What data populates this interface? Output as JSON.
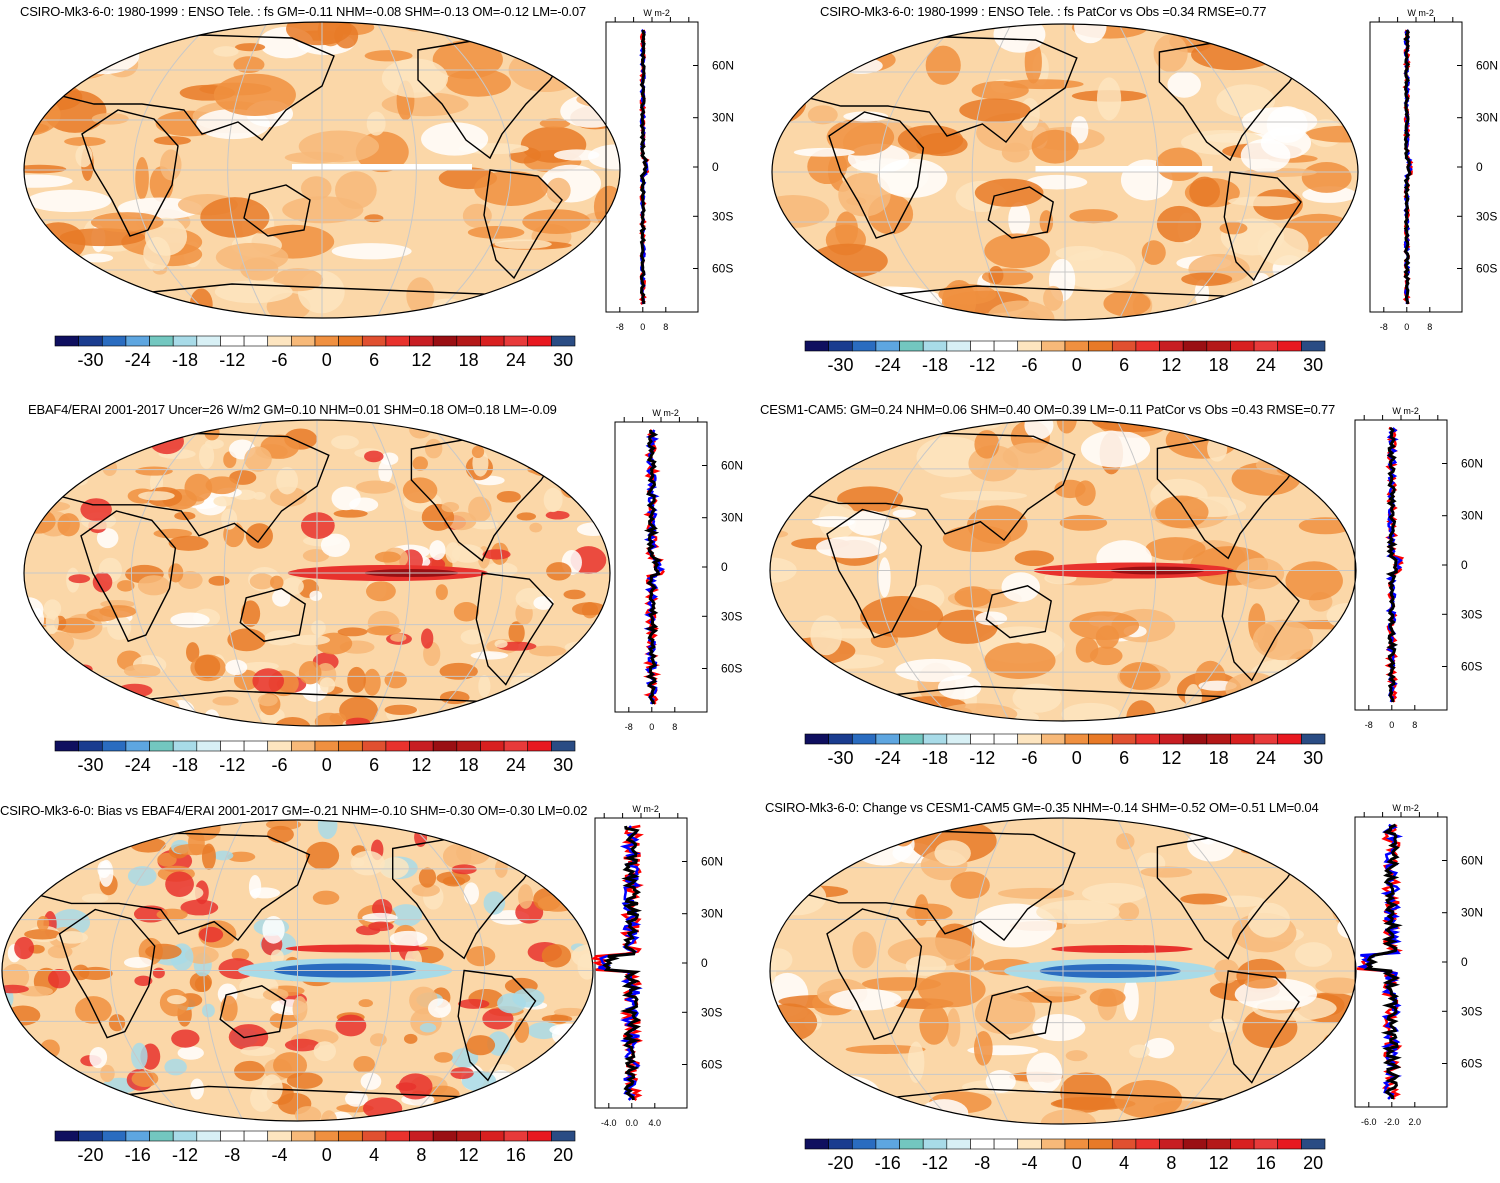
{
  "panels": [
    {
      "title": "CSIRO-Mk3-6-0: 1980-1999 : ENSO Tele. : fs GM=-0.11 NHM=-0.08 SHM=-0.13 OM=-0.12 LM=-0.07",
      "colorbar_labels": [
        "-30",
        "-24",
        "-18",
        "-12",
        "-6",
        "0",
        "6",
        "12",
        "18",
        "24",
        "30"
      ],
      "zonal": {
        "units": "W m-2",
        "lat_labels": [
          "60N",
          "30N",
          "0",
          "30S",
          "60S"
        ],
        "x_ticks": [
          "-8",
          "0",
          "8"
        ]
      }
    },
    {
      "title": "CSIRO-Mk3-6-0: 1980-1999 : ENSO Tele. : fs PatCor vs Obs =0.34 RMSE=0.77",
      "colorbar_labels": [
        "-30",
        "-24",
        "-18",
        "-12",
        "-6",
        "0",
        "6",
        "12",
        "18",
        "24",
        "30"
      ],
      "zonal": {
        "units": "W m-2",
        "lat_labels": [
          "60N",
          "30N",
          "0",
          "30S",
          "60S"
        ],
        "x_ticks": [
          "-8",
          "0",
          "8"
        ]
      }
    },
    {
      "title": "EBAF4/ERAI 2001-2017 Uncer=26 W/m2 GM=0.10 NHM=0.01 SHM=0.18 OM=0.18 LM=-0.09",
      "colorbar_labels": [
        "-30",
        "-24",
        "-18",
        "-12",
        "-6",
        "0",
        "6",
        "12",
        "18",
        "24",
        "30"
      ],
      "zonal": {
        "units": "W m-2",
        "lat_labels": [
          "60N",
          "30N",
          "0",
          "30S",
          "60S"
        ],
        "x_ticks": [
          "-8",
          "0",
          "8"
        ]
      }
    },
    {
      "title": "CESM1-CAM5: GM=0.24 NHM=0.06 SHM=0.40 OM=0.39 LM=-0.11 PatCor vs Obs =0.43 RMSE=0.77",
      "colorbar_labels": [
        "-30",
        "-24",
        "-18",
        "-12",
        "-6",
        "0",
        "6",
        "12",
        "18",
        "24",
        "30"
      ],
      "zonal": {
        "units": "W m-2",
        "lat_labels": [
          "60N",
          "30N",
          "0",
          "30S",
          "60S"
        ],
        "x_ticks": [
          "-8",
          "0",
          "8"
        ]
      }
    },
    {
      "title": "CSIRO-Mk3-6-0: Bias vs EBAF4/ERAI 2001-2017 GM=-0.21 NHM=-0.10 SHM=-0.30 OM=-0.30 LM=0.02",
      "colorbar_labels": [
        "-20",
        "-16",
        "-12",
        "-8",
        "-4",
        "0",
        "4",
        "8",
        "12",
        "16",
        "20"
      ],
      "zonal": {
        "units": "W m-2",
        "lat_labels": [
          "60N",
          "30N",
          "0",
          "30S",
          "60S"
        ],
        "x_ticks": [
          "-4.0",
          "0.0",
          "4.0"
        ]
      }
    },
    {
      "title": "CSIRO-Mk3-6-0: Change vs CESM1-CAM5 GM=-0.35 NHM=-0.14 SHM=-0.52 OM=-0.51 LM=0.04",
      "colorbar_labels": [
        "-20",
        "-16",
        "-12",
        "-8",
        "-4",
        "0",
        "4",
        "8",
        "12",
        "16",
        "20"
      ],
      "zonal": {
        "units": "W m-2",
        "lat_labels": [
          "60N",
          "30N",
          "0",
          "30S",
          "60S"
        ],
        "x_ticks": [
          "-6.0",
          "-2.0",
          "2.0"
        ]
      }
    }
  ],
  "colors": {
    "palette": [
      "#0f0f5f",
      "#1a3c8f",
      "#2a6cc0",
      "#5ea6e0",
      "#73c7c0",
      "#a8dbe8",
      "#d8f0f5",
      "#ffffff",
      "#ffffff",
      "#fde5c0",
      "#f7b979",
      "#f09040",
      "#e87a27",
      "#e05030",
      "#e8322d",
      "#c81e23",
      "#9a0f13",
      "#b41818",
      "#d82020",
      "#e83a3a",
      "#e81820",
      "#2a4c84"
    ],
    "ocean_base": "#fbd7a8",
    "land_line": "#000000",
    "zonal_red": "#ff0000",
    "zonal_blue": "#0000ff",
    "zonal_black": "#000000"
  }
}
